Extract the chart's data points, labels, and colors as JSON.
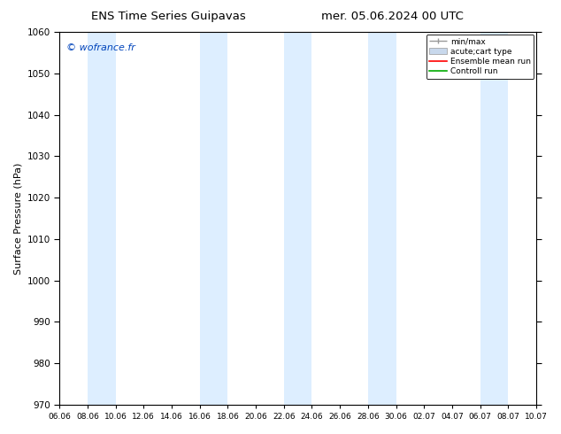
{
  "title_left": "ENS Time Series Guipavas",
  "title_right": "mer. 05.06.2024 00 UTC",
  "ylabel": "Surface Pressure (hPa)",
  "ylim": [
    970,
    1060
  ],
  "yticks": [
    970,
    980,
    990,
    1000,
    1010,
    1020,
    1030,
    1040,
    1050,
    1060
  ],
  "xtick_labels": [
    "06.06",
    "08.06",
    "10.06",
    "12.06",
    "14.06",
    "16.06",
    "18.06",
    "20.06",
    "22.06",
    "24.06",
    "26.06",
    "28.06",
    "30.06",
    "02.07",
    "04.07",
    "06.07",
    "08.07",
    "10.07"
  ],
  "background_color": "#ffffff",
  "plot_bg_color": "#ffffff",
  "shaded_band_color": "#ddeeff",
  "watermark_text": "© wofrance.fr",
  "watermark_color": "#0044bb",
  "legend_labels": [
    "min/max",
    "acute;cart type",
    "Ensemble mean run",
    "Controll run"
  ],
  "legend_colors": [
    "#999999",
    "#c8d8ec",
    "#ff0000",
    "#00aa00"
  ],
  "shaded_ranges": [
    [
      "08.06",
      "10.06"
    ],
    [
      "16.06",
      "18.06"
    ],
    [
      "22.06",
      "24.06"
    ],
    [
      "28.06",
      "30.06"
    ],
    [
      "06.07",
      "08.07"
    ]
  ]
}
